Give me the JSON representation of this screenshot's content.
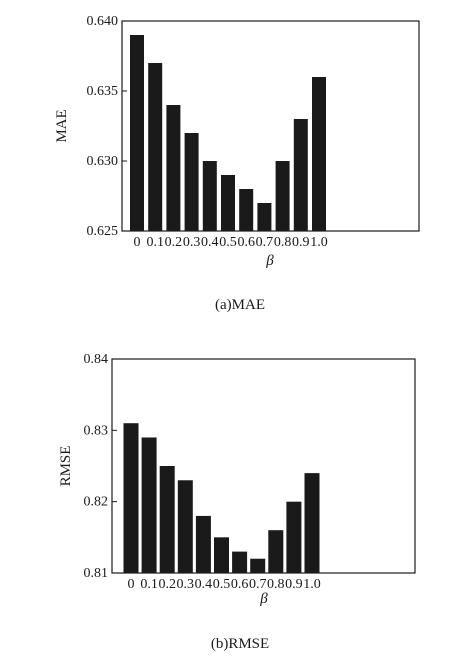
{
  "chart_data": [
    {
      "type": "bar",
      "caption": "(a)MAE",
      "xlabel": "β",
      "ylabel": "MAE",
      "ylim": [
        0.625,
        0.64
      ],
      "yticks": [
        "0.625",
        "0.630",
        "0.635",
        "0.640"
      ],
      "ytick_values": [
        0.625,
        0.63,
        0.635,
        0.64
      ],
      "categories": [
        "0",
        "0.1",
        "0.2",
        "0.3",
        "0.4",
        "0.5",
        "0.6",
        "0.7",
        "0.8",
        "0.9",
        "1.0"
      ],
      "values": [
        0.639,
        0.637,
        0.634,
        0.632,
        0.63,
        0.629,
        0.628,
        0.627,
        0.63,
        0.633,
        0.636
      ]
    },
    {
      "type": "bar",
      "caption": "(b)RMSE",
      "xlabel": "β",
      "ylabel": "RMSE",
      "ylim": [
        0.81,
        0.84
      ],
      "yticks": [
        "0.81",
        "0.82",
        "0.83",
        "0.84"
      ],
      "ytick_values": [
        0.81,
        0.82,
        0.83,
        0.84
      ],
      "categories": [
        "0",
        "0.1",
        "0.2",
        "0.3",
        "0.4",
        "0.5",
        "0.6",
        "0.7",
        "0.8",
        "0.9",
        "1.0"
      ],
      "values": [
        0.831,
        0.829,
        0.825,
        0.823,
        0.818,
        0.815,
        0.813,
        0.812,
        0.816,
        0.82,
        0.824
      ]
    }
  ]
}
